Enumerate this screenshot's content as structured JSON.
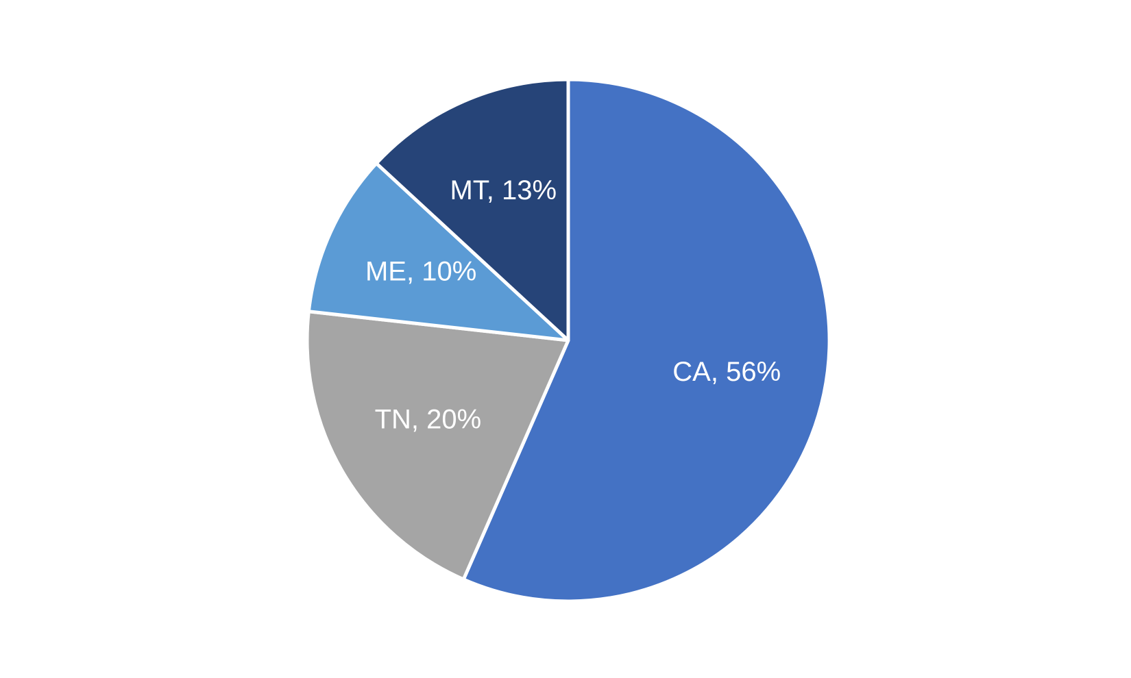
{
  "chart_data": {
    "type": "pie",
    "values": [
      56,
      20,
      10,
      13
    ],
    "value_labels": [
      "CA, 56%",
      "TN, 20%",
      "ME, 10%",
      "MT, 13%"
    ],
    "colors": [
      "#4472c4",
      "#a5a5a5",
      "#5b9bd5",
      "#264478"
    ]
  }
}
